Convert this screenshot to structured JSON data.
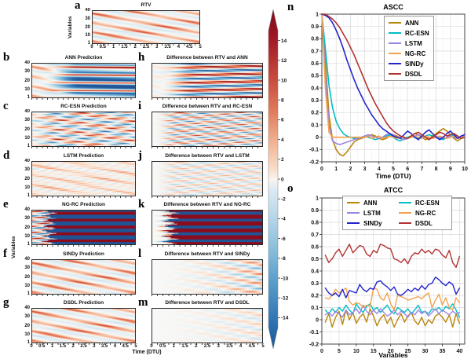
{
  "palette": {
    "ANN": "#b8860b",
    "RC-ESN": "#00bdc6",
    "LSTM": "#9d85e2",
    "NG-RC": "#f3a14e",
    "SINDy": "#2323cd",
    "DSDL": "#b23232"
  },
  "heatmaps": {
    "ylabel": "Variables",
    "xlabel": "Time (DTU)",
    "ytick_labels": [
      "40",
      "30",
      "20",
      "10",
      "1"
    ],
    "ytick_values": [
      40,
      30,
      20,
      10,
      1
    ],
    "xtick_labels": [
      "0",
      "0.5",
      "1",
      "1.5",
      "2",
      "2.5",
      "3",
      "3.5",
      "4",
      "4.5",
      "5"
    ],
    "xtick_values": [
      0,
      0.5,
      1,
      1.5,
      2,
      2.5,
      3,
      3.5,
      4,
      4.5,
      5
    ],
    "panels": [
      {
        "letter": "a",
        "title": "RTV",
        "pattern": "waves",
        "phase": 0
      },
      {
        "letter": "b",
        "title": "ANN Prediction",
        "pattern": "bands"
      },
      {
        "letter": "c",
        "title": "RC-ESN Prediction",
        "pattern": "mixed"
      },
      {
        "letter": "d",
        "title": "LSTM Prediction",
        "pattern": "faintwaves"
      },
      {
        "letter": "e",
        "title": "NG-RC Prediction",
        "pattern": "ngrc"
      },
      {
        "letter": "f",
        "title": "SINDy Prediction",
        "pattern": "waves",
        "phase": 0.18
      },
      {
        "letter": "g",
        "title": "DSDL Prediction",
        "pattern": "waves",
        "phase": 0.07
      },
      {
        "letter": "h",
        "title": "Difference between RTV and ANN",
        "pattern": "diff-strong"
      },
      {
        "letter": "i",
        "title": "Difference between RTV and RC-ESN",
        "pattern": "diff-mixed",
        "gain": 1
      },
      {
        "letter": "j",
        "title": "Difference between RTV and LSTM",
        "pattern": "diff-mixed",
        "gain": 0.55
      },
      {
        "letter": "k",
        "title": "Difference between RTV and NG-RC",
        "pattern": "diff-ngrc"
      },
      {
        "letter": "l",
        "title": "Difference between RTV and SINDy",
        "pattern": "diff-grow",
        "gain": 1,
        "phase": 0
      },
      {
        "letter": "m",
        "title": "Difference between RTV and DSDL",
        "pattern": "diff-grow",
        "gain": 0.5,
        "phase": 1.3
      }
    ]
  },
  "colorbar": {
    "vmin": -15,
    "vmax": 15,
    "ticks": [
      14,
      12,
      10,
      8,
      6,
      4,
      2,
      0,
      -2,
      -4,
      -6,
      -8,
      -10,
      -12,
      -14
    ]
  },
  "chart_data": [
    {
      "id": "n",
      "letter": "n",
      "type": "line",
      "title": "ASCC",
      "xlabel": "Time (DTU)",
      "xlim": [
        0,
        10
      ],
      "ylim": [
        -0.2,
        1.0
      ],
      "xticks": [
        0,
        1,
        2,
        3,
        4,
        5,
        6,
        7,
        8,
        9,
        10
      ],
      "yticks": [
        1,
        0.9,
        0.8,
        0.7,
        0.6,
        0.5,
        0.4,
        0.3,
        0.2,
        0.1,
        0,
        -0.1,
        -0.2
      ],
      "ytick_labels": [
        "1",
        "0.9",
        "0.8",
        "0.7",
        "0.6",
        "0.5",
        "0.4",
        "0.3",
        "0.2",
        "0.1",
        "0",
        "-0.1",
        "-0.2"
      ],
      "legend": [
        "ANN",
        "RC-ESN",
        "LSTM",
        "NG-RC",
        "SINDy",
        "DSDL"
      ],
      "legend_position": "top-right",
      "x": [
        0,
        0.25,
        0.5,
        0.75,
        1,
        1.25,
        1.5,
        1.75,
        2,
        2.25,
        2.5,
        2.75,
        3,
        3.25,
        3.5,
        3.75,
        4,
        4.25,
        4.5,
        4.75,
        5,
        5.25,
        5.5,
        5.75,
        6,
        6.25,
        6.5,
        6.75,
        7,
        7.25,
        7.5,
        7.75,
        8,
        8.25,
        8.5,
        8.75,
        9,
        9.25,
        9.5,
        9.75,
        10
      ],
      "series": [
        {
          "name": "ANN",
          "values": [
            1.0,
            0.62,
            0.18,
            -0.02,
            -0.1,
            -0.14,
            -0.15,
            -0.12,
            -0.08,
            -0.04,
            -0.02,
            -0.01,
            0.0,
            0.01,
            0.02,
            0.01,
            -0.01,
            -0.02,
            -0.01,
            0.01,
            0.02,
            0.01,
            -0.01,
            -0.02,
            -0.01,
            0.01,
            0.03,
            0.02,
            0.0,
            -0.02,
            -0.01,
            0.01,
            0.03,
            0.05,
            0.07,
            0.05,
            0.02,
            -0.01,
            -0.03,
            -0.01,
            0.01
          ]
        },
        {
          "name": "RC-ESN",
          "values": [
            1.0,
            0.72,
            0.42,
            0.24,
            0.13,
            0.07,
            0.03,
            0.01,
            0.0,
            -0.01,
            -0.01,
            0.0,
            0.01,
            0.0,
            -0.01,
            -0.02,
            -0.01,
            0.0,
            0.01,
            0.02,
            0.0,
            -0.02,
            -0.03,
            -0.01,
            0.0,
            0.01,
            0.0,
            -0.01,
            0.0,
            0.01,
            0.02,
            0.01,
            0.0,
            -0.01,
            -0.02,
            0.0,
            0.01,
            0.02,
            0.01,
            -0.01,
            0.0
          ]
        },
        {
          "name": "LSTM",
          "values": [
            1.0,
            0.52,
            0.1,
            -0.03,
            -0.05,
            -0.06,
            -0.05,
            -0.04,
            -0.03,
            -0.02,
            -0.01,
            0.0,
            0.01,
            0.02,
            0.01,
            0.0,
            -0.01,
            0.0,
            0.02,
            0.03,
            0.02,
            0.0,
            -0.01,
            -0.02,
            -0.01,
            0.0,
            0.01,
            0.02,
            0.01,
            0.0,
            -0.01,
            0.0,
            0.01,
            0.0,
            -0.01,
            0.0,
            0.01,
            0.0,
            -0.01,
            0.0,
            0.01
          ]
        },
        {
          "name": "NG-RC",
          "values": [
            1.0,
            0.4,
            0.04,
            0.0,
            0.0,
            0.0,
            0.0,
            0.0,
            0.0,
            0.0,
            0.0,
            0.0,
            0.0,
            0.01,
            -0.01,
            0.0,
            0.01,
            -0.01,
            0.0,
            0.01,
            0.0,
            -0.01,
            0.01,
            0.0,
            -0.01,
            0.0,
            0.01,
            0.0,
            -0.01,
            0.01,
            0.0,
            -0.01,
            0.0,
            0.01,
            0.0,
            -0.01,
            0.0,
            0.01,
            -0.01,
            0.0,
            0.0
          ]
        },
        {
          "name": "SINDy",
          "values": [
            1.0,
            0.99,
            0.97,
            0.93,
            0.87,
            0.8,
            0.72,
            0.63,
            0.55,
            0.47,
            0.4,
            0.34,
            0.28,
            0.23,
            0.18,
            0.14,
            0.1,
            0.07,
            0.05,
            0.03,
            0.01,
            0.0,
            -0.01,
            0.02,
            0.05,
            0.03,
            0.0,
            -0.02,
            0.01,
            0.04,
            0.06,
            0.03,
            0.0,
            -0.02,
            0.0,
            0.03,
            0.05,
            0.02,
            -0.01,
            0.01,
            0.02
          ]
        },
        {
          "name": "DSDL",
          "values": [
            1.0,
            1.0,
            0.98,
            0.96,
            0.93,
            0.89,
            0.84,
            0.79,
            0.73,
            0.67,
            0.6,
            0.53,
            0.46,
            0.39,
            0.33,
            0.27,
            0.22,
            0.17,
            0.12,
            0.08,
            0.05,
            0.03,
            0.01,
            0.0,
            -0.01,
            0.01,
            0.03,
            0.04,
            0.02,
            0.0,
            -0.02,
            0.0,
            0.02,
            0.04,
            0.03,
            0.01,
            0.02,
            0.03,
            0.01,
            -0.01,
            0.0
          ]
        }
      ]
    },
    {
      "id": "o",
      "letter": "o",
      "type": "line",
      "title": "ATCC",
      "xlabel": "Variables",
      "xlim": [
        0,
        41.5
      ],
      "ylim": [
        -0.2,
        1.0
      ],
      "xticks": [
        0,
        5,
        10,
        15,
        20,
        25,
        30,
        35,
        40
      ],
      "yticks": [
        1,
        0.9,
        0.8,
        0.7,
        0.6,
        0.5,
        0.4,
        0.3,
        0.2,
        0.1,
        0,
        -0.1,
        -0.2
      ],
      "ytick_labels": [
        "1",
        "0.9",
        "0.8",
        "0.7",
        "0.6",
        "0.5",
        "0.4",
        "0.3",
        "0.2",
        "0.1",
        "0",
        "-0.1",
        "-0.2"
      ],
      "legend": [
        "ANN",
        "RC-ESN",
        "LSTM",
        "NG-RC",
        "SINDy",
        "DSDL"
      ],
      "legend_position": "top-center",
      "x": [
        1,
        2,
        3,
        4,
        5,
        6,
        7,
        8,
        9,
        10,
        11,
        12,
        13,
        14,
        15,
        16,
        17,
        18,
        19,
        20,
        21,
        22,
        23,
        24,
        25,
        26,
        27,
        28,
        29,
        30,
        31,
        32,
        33,
        34,
        35,
        36,
        37,
        38,
        39,
        40
      ],
      "series": [
        {
          "name": "ANN",
          "values": [
            -0.02,
            0.05,
            -0.06,
            0.02,
            0.07,
            -0.04,
            0.08,
            0.0,
            0.06,
            -0.03,
            0.02,
            0.05,
            -0.02,
            0.09,
            0.03,
            -0.05,
            0.01,
            0.04,
            -0.03,
            0.02,
            -0.06,
            0.0,
            0.05,
            -0.02,
            0.03,
            0.06,
            -0.01,
            -0.04,
            0.02,
            -0.05,
            0.0,
            -0.03,
            0.03,
            0.05,
            0.02,
            -0.02,
            0.04,
            -0.06,
            0.05,
            -0.03
          ]
        },
        {
          "name": "RC-ESN",
          "values": [
            0.08,
            0.05,
            0.09,
            0.06,
            0.1,
            0.07,
            0.12,
            0.08,
            0.05,
            0.13,
            0.09,
            0.06,
            0.11,
            0.13,
            0.08,
            0.1,
            0.06,
            0.09,
            0.12,
            0.07,
            0.05,
            0.1,
            0.08,
            0.06,
            0.09,
            0.05,
            0.08,
            0.12,
            0.06,
            0.07,
            0.05,
            0.09,
            0.08,
            0.1,
            0.07,
            0.11,
            0.09,
            0.13,
            0.08,
            0.02
          ]
        },
        {
          "name": "LSTM",
          "values": [
            0.04,
            0.06,
            0.03,
            0.07,
            0.05,
            0.02,
            0.08,
            0.04,
            0.06,
            0.09,
            0.05,
            0.12,
            0.07,
            0.04,
            0.08,
            0.05,
            0.09,
            0.06,
            0.03,
            0.05,
            0.08,
            0.04,
            0.07,
            0.05,
            0.02,
            0.06,
            0.04,
            0.08,
            0.05,
            0.07,
            0.03,
            0.06,
            0.09,
            0.05,
            0.08,
            0.06,
            0.04,
            0.07,
            0.05,
            0.06
          ]
        },
        {
          "name": "NG-RC",
          "values": [
            0.18,
            0.17,
            0.2,
            0.25,
            0.22,
            0.24,
            0.26,
            0.15,
            0.12,
            0.14,
            0.13,
            0.1,
            0.12,
            0.11,
            0.26,
            0.25,
            0.18,
            0.16,
            0.22,
            0.13,
            0.08,
            0.2,
            0.19,
            0.18,
            0.16,
            0.17,
            0.18,
            0.19,
            0.17,
            0.2,
            0.22,
            0.1,
            0.16,
            0.21,
            0.12,
            0.18,
            0.1,
            0.08,
            0.18,
            0.14
          ]
        },
        {
          "name": "SINDy",
          "values": [
            0.26,
            0.22,
            0.2,
            0.22,
            0.19,
            0.25,
            0.18,
            0.24,
            0.23,
            0.22,
            0.29,
            0.25,
            0.23,
            0.26,
            0.25,
            0.31,
            0.32,
            0.29,
            0.27,
            0.24,
            0.27,
            0.21,
            0.2,
            0.22,
            0.25,
            0.23,
            0.26,
            0.24,
            0.28,
            0.25,
            0.29,
            0.3,
            0.35,
            0.33,
            0.3,
            0.28,
            0.31,
            0.29,
            0.21,
            0.26
          ]
        },
        {
          "name": "DSDL",
          "values": [
            0.53,
            0.47,
            0.5,
            0.55,
            0.58,
            0.52,
            0.57,
            0.62,
            0.55,
            0.58,
            0.61,
            0.6,
            0.54,
            0.52,
            0.57,
            0.55,
            0.62,
            0.61,
            0.59,
            0.58,
            0.5,
            0.49,
            0.47,
            0.5,
            0.46,
            0.52,
            0.55,
            0.54,
            0.58,
            0.55,
            0.57,
            0.54,
            0.58,
            0.57,
            0.53,
            0.51,
            0.57,
            0.47,
            0.43,
            0.52
          ]
        }
      ]
    }
  ]
}
